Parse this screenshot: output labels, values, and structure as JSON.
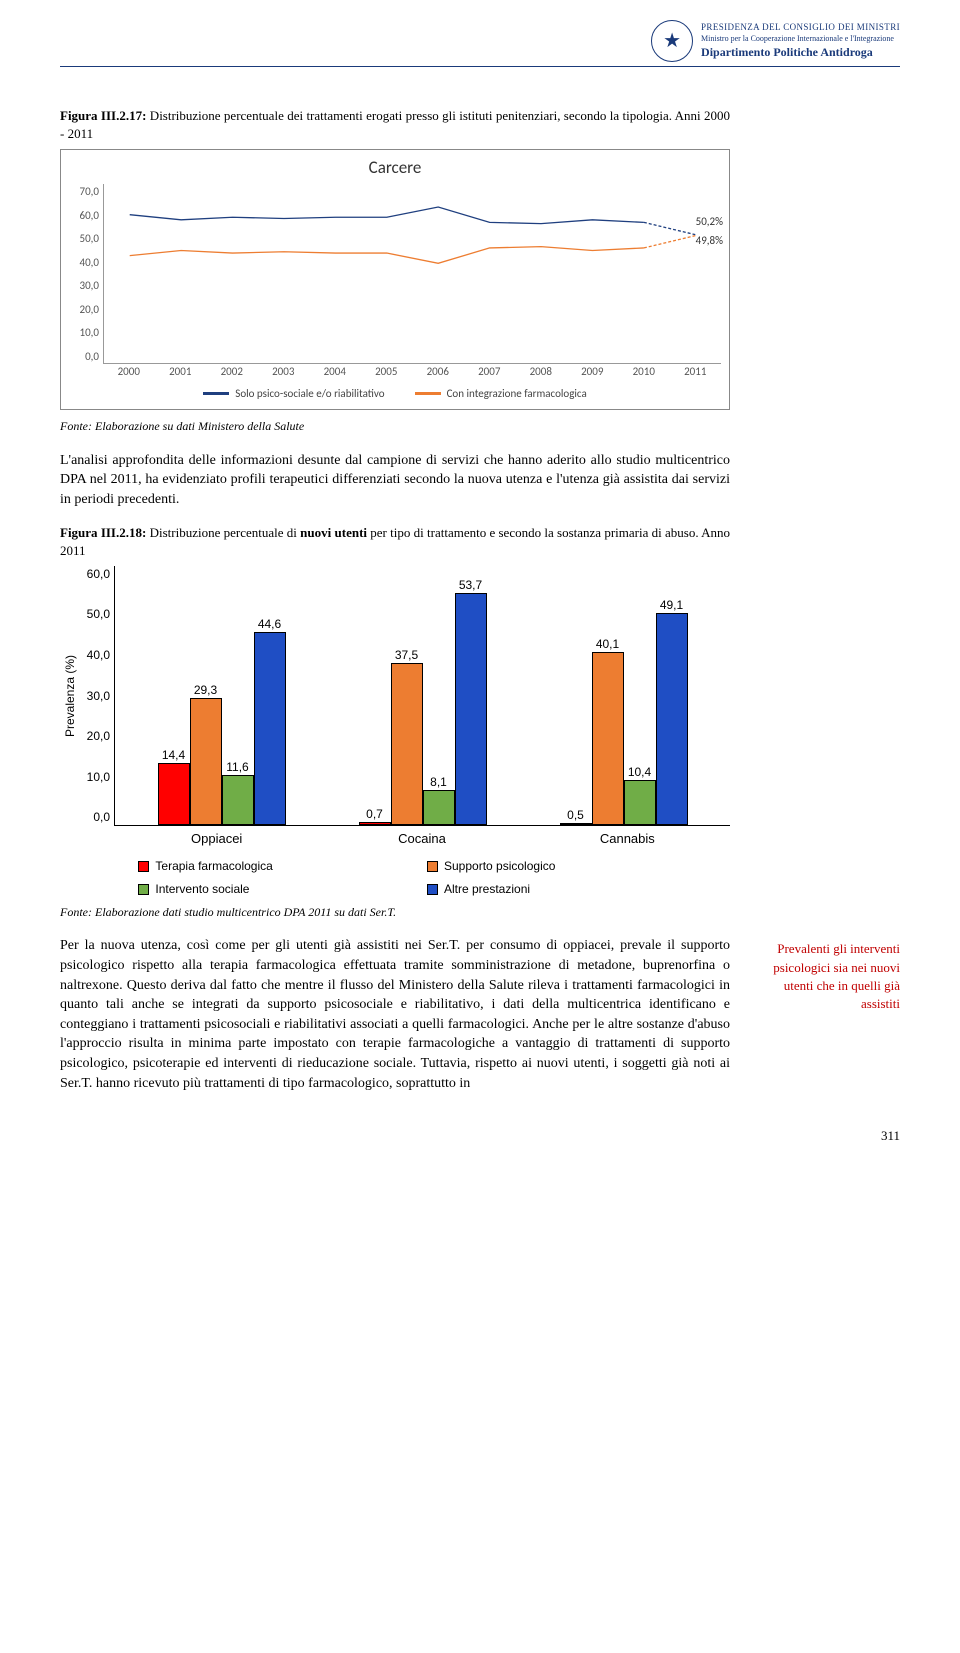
{
  "header": {
    "line1": "PRESIDENZA DEL CONSIGLIO DEI MINISTRI",
    "line2": "Ministro per la Cooperazione Internazionale e l'Integrazione",
    "line3": "Dipartimento Politiche Antidroga"
  },
  "fig17": {
    "caption_prefix": "Figura III.2.17:",
    "caption_rest": " Distribuzione percentuale dei trattamenti erogati presso gli istituti penitenziari, secondo la tipologia. Anni 2000 - 2011",
    "chart_title": "Carcere",
    "y_ticks": [
      "70,0",
      "60,0",
      "50,0",
      "40,0",
      "30,0",
      "20,0",
      "10,0",
      "0,0"
    ],
    "y_max": 70,
    "years": [
      "2000",
      "2001",
      "2002",
      "2003",
      "2004",
      "2005",
      "2006",
      "2007",
      "2008",
      "2009",
      "2010",
      "2011"
    ],
    "series1_name": "Solo psico-sociale e/o riabilitativo",
    "series1_color": "#1f3f7f",
    "series1_values": [
      58,
      56,
      57,
      56.5,
      57,
      57,
      61,
      55,
      54.5,
      56,
      55,
      50.2
    ],
    "series1_end_label": "50,2%",
    "series2_name": "Con integrazione farmacologica",
    "series2_color": "#ed7d31",
    "series2_values": [
      42,
      44,
      43,
      43.5,
      43,
      43,
      39,
      45,
      45.5,
      44,
      45,
      49.8
    ],
    "series2_end_label": "49,8%",
    "source": "Fonte: Elaborazione su dati Ministero della Salute"
  },
  "para1": "L'analisi approfondita delle informazioni desunte dal campione di servizi che hanno aderito allo studio multicentrico DPA nel 2011, ha evidenziato profili terapeutici differenziati secondo la nuova utenza e l'utenza già assistita dai servizi in periodi precedenti.",
  "fig18": {
    "caption_prefix": "Figura III.2.18:",
    "caption_rest_a": " Distribuzione percentuale di ",
    "caption_bold": "nuovi utenti",
    "caption_rest_b": " per tipo di trattamento e secondo la sostanza primaria di abuso. Anno 2011",
    "y_label": "Prevalenza (%)",
    "y_ticks": [
      "60,0",
      "50,0",
      "40,0",
      "30,0",
      "20,0",
      "10,0",
      "0,0"
    ],
    "y_max": 60,
    "categories": [
      "Oppiacei",
      "Cocaina",
      "Cannabis"
    ],
    "series": [
      {
        "name": "Terapia farmacologica",
        "color": "#ff0000",
        "values": [
          14.4,
          0.7,
          0.5
        ],
        "labels": [
          "14,4",
          "0,7",
          "0,5"
        ]
      },
      {
        "name": "Supporto psicologico",
        "color": "#ed7d31",
        "values": [
          29.3,
          37.5,
          40.1
        ],
        "labels": [
          "29,3",
          "37,5",
          "40,1"
        ]
      },
      {
        "name": "Intervento sociale",
        "color": "#70ad47",
        "values": [
          11.6,
          8.1,
          10.4
        ],
        "labels": [
          "11,6",
          "8,1",
          "10,4"
        ]
      },
      {
        "name": "Altre prestazioni",
        "color": "#1f4ec4",
        "values": [
          44.6,
          53.7,
          49.1
        ],
        "labels": [
          "44,6",
          "53,7",
          "49,1"
        ]
      }
    ],
    "source": "Fonte: Elaborazione dati studio multicentrico DPA 2011 su dati Ser.T."
  },
  "para2": "Per la nuova utenza, così come per gli utenti già assistiti nei Ser.T. per consumo di oppiacei, prevale il supporto psicologico rispetto alla terapia farmacologica effettuata tramite somministrazione di metadone, buprenorfina o naltrexone. Questo deriva dal fatto che mentre il flusso del Ministero della Salute rileva i trattamenti farmacologici in quanto tali anche se integrati da supporto psicosociale e riabilitativo, i dati della multicentrica identificano e conteggiano i trattamenti psicosociali e riabilitativi associati a quelli farmacologici. Anche per le altre sostanze d'abuso l'approccio risulta in minima parte impostato con terapie farmacologiche a vantaggio di trattamenti di supporto psicologico, psicoterapie ed interventi di rieducazione sociale. Tuttavia, rispetto ai nuovi utenti, i soggetti già noti ai Ser.T. hanno ricevuto più trattamenti di tipo farmacologico, soprattutto in",
  "side_note": "Prevalenti gli interventi psicologici sia nei nuovi utenti che in quelli già assistiti",
  "page_number": "311"
}
